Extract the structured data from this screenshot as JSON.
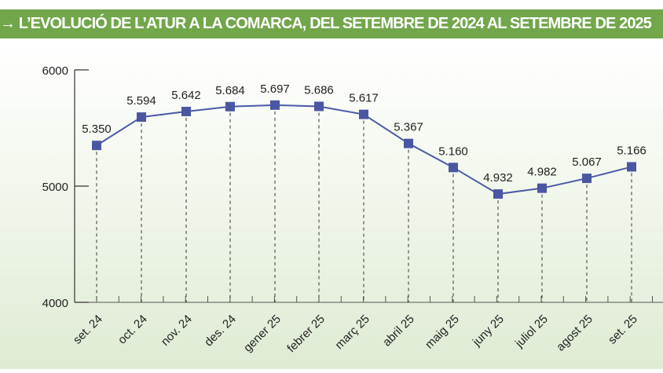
{
  "title": "→ L’EVOLUCIÓ DE L’ATUR A LA COMARCA, DEL SETEMBRE DE 2024 AL SETEMBRE DE 2025",
  "colors": {
    "header": "#72a64b",
    "line": "#4a5aa8",
    "marker": "#4b56a3"
  },
  "chart_data": {
    "type": "line",
    "title": "→ L’EVOLUCIÓ DE L’ATUR A LA COMARCA, DEL SETEMBRE DE 2024 AL SETEMBRE DE 2025",
    "categories": [
      "set. 24",
      "oct. 24",
      "nov. 24",
      "des. 24",
      "gener 25",
      "febrer 25",
      "març 25",
      "abril 25",
      "maig 25",
      "juny 25",
      "juliol 25",
      "agost 25",
      "set. 25"
    ],
    "values": [
      5350,
      5594,
      5642,
      5684,
      5697,
      5686,
      5617,
      5367,
      5160,
      4932,
      4982,
      5067,
      5166
    ],
    "data_labels": [
      "5.350",
      "5.594",
      "5.642",
      "5.684",
      "5.697",
      "5.686",
      "5.617",
      "5.367",
      "5.160",
      "4.932",
      "4.982",
      "5.067",
      "5.166"
    ],
    "ylim": [
      4000,
      6000
    ],
    "yticks": [
      "4000",
      "5000",
      "6000"
    ],
    "grid": false,
    "drop_lines": "dashed",
    "marker": "square"
  }
}
